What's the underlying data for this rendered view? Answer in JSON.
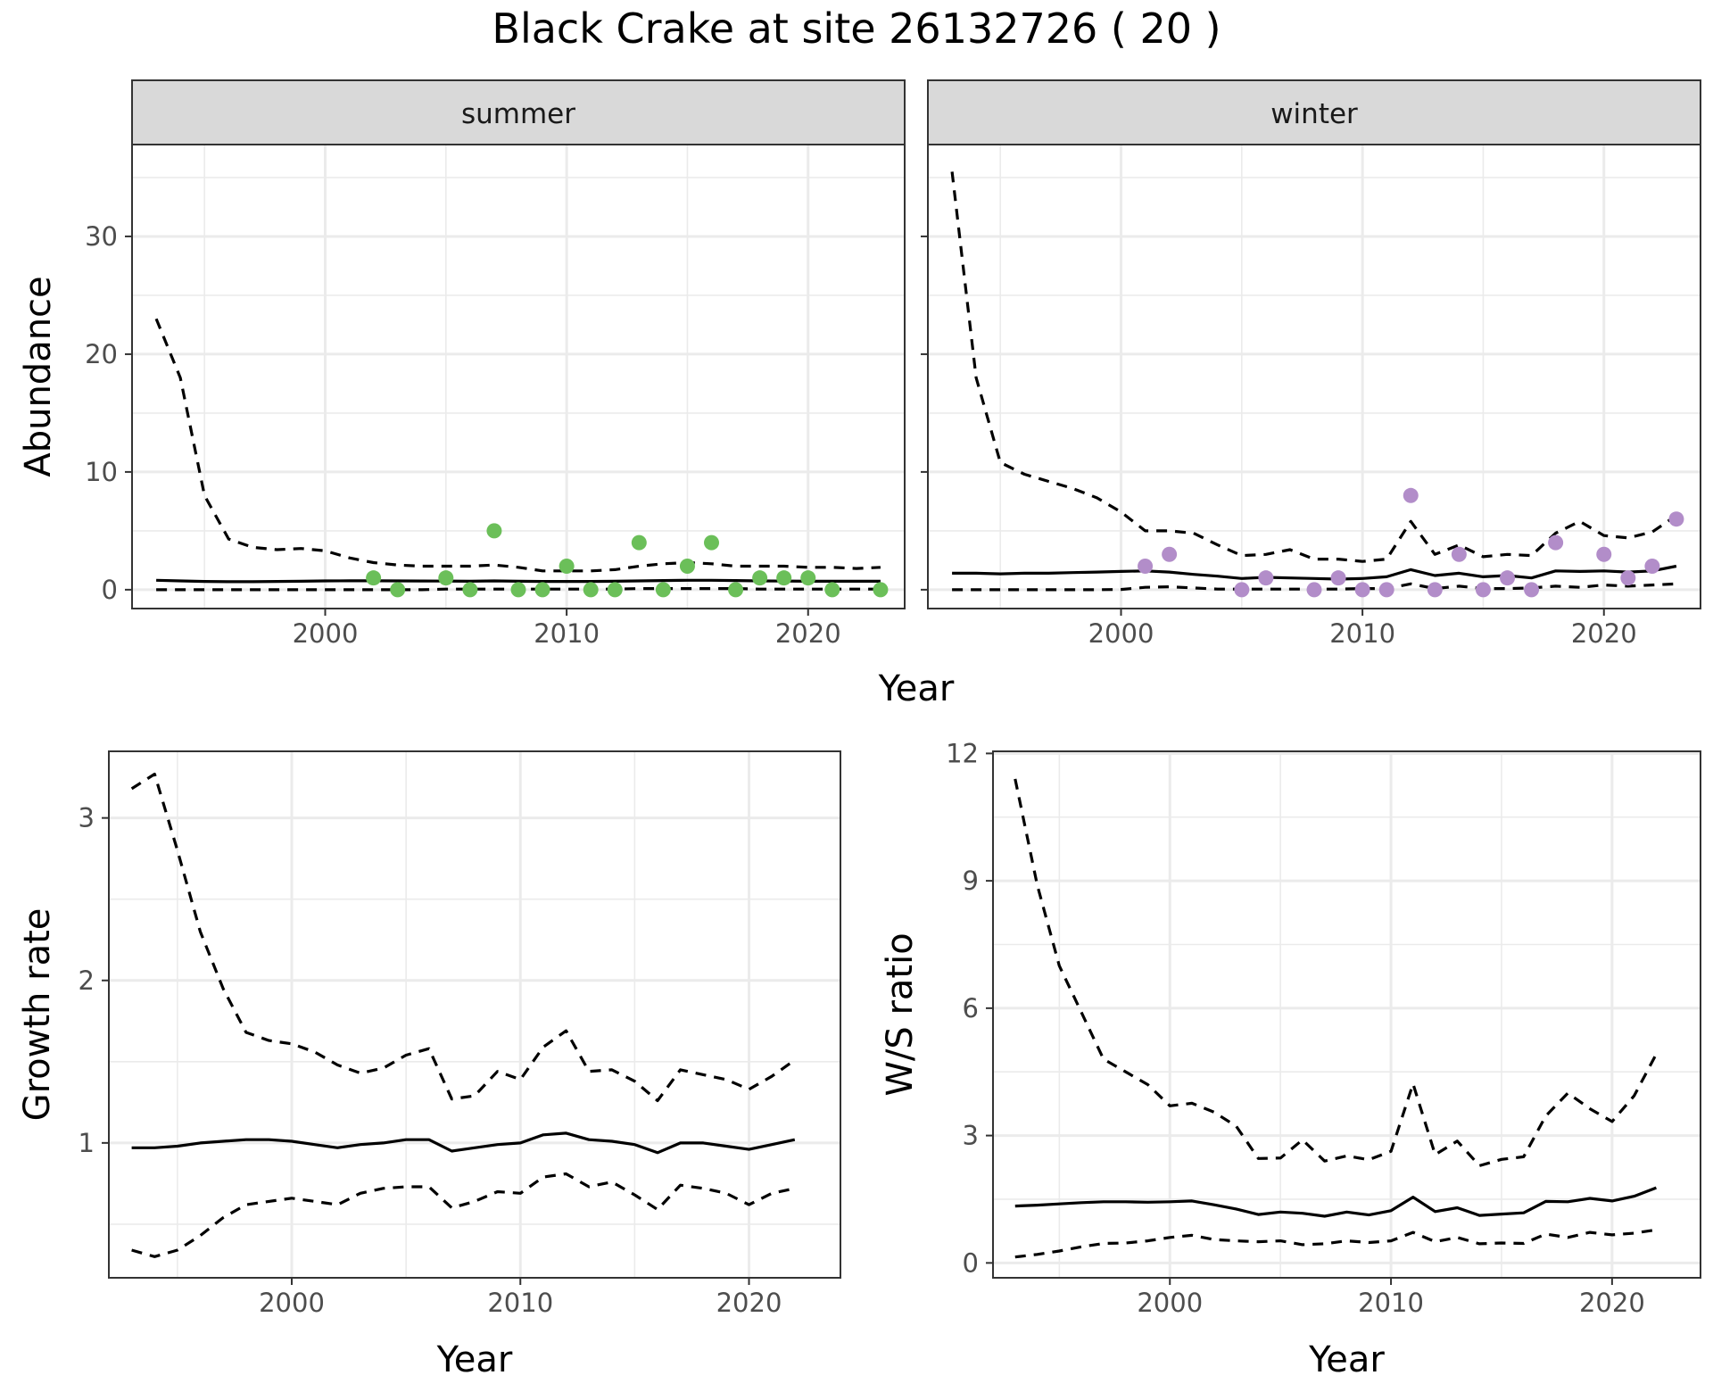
{
  "title": "Black Crake at site 26132726 ( 20 )",
  "colors": {
    "summer_points": "#6bbf59",
    "winter_points": "#b28dc9",
    "lines": "#000000",
    "strip_bg": "#d9d9d9",
    "grid": "#ebebeb"
  },
  "chart_data": [
    {
      "type": "line",
      "panel": "abundance",
      "facets": [
        "summer",
        "winter"
      ],
      "xlabel": "Year",
      "ylabel": "Abundance",
      "xlim": [
        1992,
        2024
      ],
      "ylim": [
        -1.6,
        37.8
      ],
      "xticks": [
        2000,
        2010,
        2020
      ],
      "yticks": [
        0,
        10,
        20,
        30
      ],
      "grid": true,
      "summer": {
        "x": [
          1993,
          1994,
          1995,
          1996,
          1997,
          1998,
          1999,
          2000,
          2001,
          2002,
          2003,
          2004,
          2005,
          2006,
          2007,
          2008,
          2009,
          2010,
          2011,
          2012,
          2013,
          2014,
          2015,
          2016,
          2017,
          2018,
          2019,
          2020,
          2021,
          2022,
          2023
        ],
        "series": [
          {
            "style": "solid",
            "values": [
              0.8,
              0.75,
              0.7,
              0.68,
              0.68,
              0.7,
              0.72,
              0.75,
              0.76,
              0.76,
              0.75,
              0.74,
              0.73,
              0.72,
              0.75,
              0.72,
              0.7,
              0.7,
              0.7,
              0.72,
              0.75,
              0.78,
              0.8,
              0.8,
              0.78,
              0.75,
              0.73,
              0.72,
              0.72,
              0.72,
              0.72
            ]
          },
          {
            "style": "dashed",
            "values": [
              23,
              18,
              8,
              4.3,
              3.6,
              3.4,
              3.5,
              3.3,
              2.7,
              2.3,
              2.1,
              2.0,
              2.0,
              2.0,
              2.1,
              1.9,
              1.6,
              1.6,
              1.6,
              1.7,
              2.0,
              2.2,
              2.3,
              2.2,
              2.0,
              2.0,
              2.0,
              1.9,
              1.9,
              1.8,
              1.9
            ]
          },
          {
            "style": "dashed",
            "values": [
              0,
              0,
              0,
              0,
              0,
              0,
              0,
              0,
              0,
              0,
              0,
              0,
              0.05,
              0.05,
              0.05,
              0.05,
              0.05,
              0.05,
              0.05,
              0.05,
              0.1,
              0.1,
              0.1,
              0.1,
              0.1,
              0.05,
              0.05,
              0.05,
              0.05,
              0.05,
              0.05
            ]
          }
        ],
        "observed": {
          "x": [
            2002,
            2003,
            2005,
            2006,
            2007,
            2008,
            2009,
            2010,
            2011,
            2012,
            2013,
            2014,
            2015,
            2016,
            2017,
            2018,
            2019,
            2020,
            2021,
            2023
          ],
          "y": [
            1,
            0,
            1,
            0,
            5,
            0,
            0,
            2,
            0,
            0,
            4,
            0,
            2,
            4,
            0,
            1,
            1,
            1,
            0,
            0
          ]
        }
      },
      "winter": {
        "x": [
          1993,
          1994,
          1995,
          1996,
          1997,
          1998,
          1999,
          2000,
          2001,
          2002,
          2003,
          2004,
          2005,
          2006,
          2007,
          2008,
          2009,
          2010,
          2011,
          2012,
          2013,
          2014,
          2015,
          2016,
          2017,
          2018,
          2019,
          2020,
          2021,
          2022,
          2023
        ],
        "series": [
          {
            "style": "solid",
            "values": [
              1.4,
              1.4,
              1.35,
              1.4,
              1.4,
              1.45,
              1.5,
              1.55,
              1.6,
              1.5,
              1.3,
              1.15,
              0.95,
              1.05,
              1.0,
              0.95,
              0.9,
              0.95,
              1.1,
              1.7,
              1.2,
              1.4,
              1.1,
              1.2,
              1.0,
              1.6,
              1.55,
              1.6,
              1.5,
              1.6,
              2.0
            ]
          },
          {
            "style": "dashed",
            "values": [
              35.5,
              18,
              10.8,
              9.8,
              9.2,
              8.6,
              7.8,
              6.6,
              5.0,
              5.0,
              4.8,
              3.8,
              2.9,
              3.0,
              3.4,
              2.6,
              2.6,
              2.4,
              2.6,
              5.8,
              3.0,
              3.8,
              2.8,
              3.0,
              2.9,
              4.8,
              5.8,
              4.6,
              4.4,
              4.9,
              6.3
            ]
          },
          {
            "style": "dashed",
            "values": [
              0,
              0,
              0,
              0,
              0,
              0,
              0,
              0.02,
              0.2,
              0.25,
              0.15,
              0.05,
              0.05,
              0.05,
              0.05,
              0.05,
              0.05,
              0.1,
              0.1,
              0.5,
              0.1,
              0.3,
              0.1,
              0.1,
              0.15,
              0.3,
              0.2,
              0.4,
              0.3,
              0.4,
              0.5
            ]
          }
        ],
        "observed": {
          "x": [
            2001,
            2002,
            2005,
            2006,
            2008,
            2009,
            2010,
            2011,
            2012,
            2013,
            2014,
            2015,
            2016,
            2017,
            2018,
            2020,
            2021,
            2022,
            2023
          ],
          "y": [
            2,
            3,
            0,
            1,
            0,
            1,
            0,
            0,
            8,
            0,
            3,
            0,
            1,
            0,
            4,
            3,
            1,
            2,
            6
          ]
        }
      }
    },
    {
      "type": "line",
      "panel": "growth",
      "xlabel": "Year",
      "ylabel": "Growth rate",
      "xlim": [
        1992,
        2024
      ],
      "ylim": [
        0.17,
        3.41
      ],
      "xticks": [
        2000,
        2010,
        2020
      ],
      "yticks": [
        1,
        2,
        3
      ],
      "grid": true,
      "x": [
        1993,
        1994,
        1995,
        1996,
        1997,
        1998,
        1999,
        2000,
        2001,
        2002,
        2003,
        2004,
        2005,
        2006,
        2007,
        2008,
        2009,
        2010,
        2011,
        2012,
        2013,
        2014,
        2015,
        2016,
        2017,
        2018,
        2019,
        2020,
        2021,
        2022
      ],
      "series": [
        {
          "style": "solid",
          "values": [
            0.97,
            0.97,
            0.98,
            1.0,
            1.01,
            1.02,
            1.02,
            1.01,
            0.99,
            0.97,
            0.99,
            1.0,
            1.02,
            1.02,
            0.95,
            0.97,
            0.99,
            1.0,
            1.05,
            1.06,
            1.02,
            1.01,
            0.99,
            0.94,
            1.0,
            1.0,
            0.98,
            0.96,
            0.99,
            1.02
          ]
        },
        {
          "style": "dashed",
          "values": [
            3.18,
            3.27,
            2.8,
            2.3,
            1.95,
            1.68,
            1.63,
            1.61,
            1.56,
            1.48,
            1.43,
            1.46,
            1.54,
            1.58,
            1.27,
            1.29,
            1.44,
            1.39,
            1.59,
            1.69,
            1.44,
            1.45,
            1.38,
            1.26,
            1.45,
            1.42,
            1.39,
            1.33,
            1.41,
            1.51
          ]
        },
        {
          "style": "dashed",
          "values": [
            0.34,
            0.3,
            0.34,
            0.43,
            0.54,
            0.62,
            0.64,
            0.66,
            0.64,
            0.62,
            0.69,
            0.72,
            0.73,
            0.73,
            0.6,
            0.64,
            0.7,
            0.69,
            0.79,
            0.81,
            0.73,
            0.76,
            0.68,
            0.59,
            0.74,
            0.72,
            0.69,
            0.62,
            0.69,
            0.72
          ]
        }
      ]
    },
    {
      "type": "line",
      "panel": "ws_ratio",
      "xlabel": "Year",
      "ylabel": "W/S ratio",
      "xlim": [
        1992,
        2024
      ],
      "ylim": [
        -0.35,
        12.05
      ],
      "xticks": [
        2000,
        2010,
        2020
      ],
      "yticks": [
        0,
        3,
        6,
        9,
        12
      ],
      "grid": true,
      "x": [
        1993,
        1994,
        1995,
        1996,
        1997,
        1998,
        1999,
        2000,
        2001,
        2002,
        2003,
        2004,
        2005,
        2006,
        2007,
        2008,
        2009,
        2010,
        2011,
        2012,
        2013,
        2014,
        2015,
        2016,
        2017,
        2018,
        2019,
        2020,
        2021,
        2022
      ],
      "series": [
        {
          "style": "solid",
          "values": [
            1.34,
            1.36,
            1.39,
            1.42,
            1.44,
            1.44,
            1.43,
            1.44,
            1.46,
            1.37,
            1.27,
            1.14,
            1.2,
            1.17,
            1.1,
            1.2,
            1.13,
            1.23,
            1.55,
            1.21,
            1.3,
            1.12,
            1.15,
            1.18,
            1.45,
            1.44,
            1.52,
            1.46,
            1.57,
            1.77
          ]
        },
        {
          "style": "dashed",
          "values": [
            11.4,
            8.9,
            7.0,
            5.9,
            4.8,
            4.5,
            4.2,
            3.7,
            3.76,
            3.55,
            3.22,
            2.46,
            2.47,
            2.9,
            2.4,
            2.52,
            2.43,
            2.63,
            4.22,
            2.55,
            2.87,
            2.29,
            2.44,
            2.5,
            3.46,
            4.0,
            3.63,
            3.33,
            3.94,
            4.92
          ]
        },
        {
          "style": "dashed",
          "values": [
            0.14,
            0.2,
            0.28,
            0.38,
            0.46,
            0.47,
            0.52,
            0.6,
            0.65,
            0.55,
            0.52,
            0.5,
            0.52,
            0.43,
            0.45,
            0.52,
            0.48,
            0.52,
            0.72,
            0.5,
            0.6,
            0.45,
            0.47,
            0.46,
            0.68,
            0.6,
            0.72,
            0.66,
            0.7,
            0.78
          ]
        }
      ]
    }
  ]
}
